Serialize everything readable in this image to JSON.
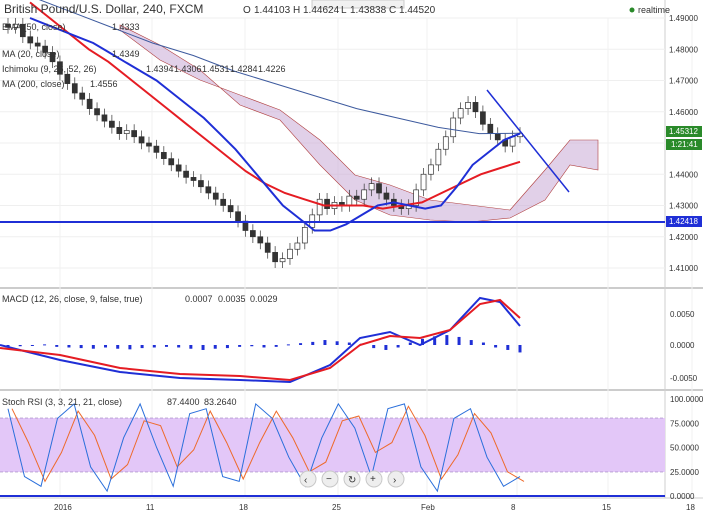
{
  "header": {
    "title": "British Pound/U.S. Dollar, 240, FXCM",
    "ohlc": {
      "o_label": "O",
      "o": "1.44103",
      "h_label": "H",
      "h": "1.44624",
      "l_label": "L",
      "l": "1.43838",
      "c_label": "C",
      "c": "1.44520"
    },
    "realtime": "realtime"
  },
  "indicators": {
    "ema": {
      "label": "EMA (50, close)",
      "value": "1.4333",
      "color": "#e51c23"
    },
    "ma20": {
      "label": "MA (20, close)",
      "value": "1.4349",
      "color": "#1f2fd6"
    },
    "ichimoku": {
      "label": "Ichimoku (9, 26, 52, 26)",
      "v1": "1.4394",
      "v2": "1.4306",
      "v3": "1.4531",
      "v4": "1.4284",
      "v5": "1.4226"
    },
    "ma200": {
      "label": "MA (200, close)",
      "value": "1.4556"
    }
  },
  "price_axis": {
    "ticks": [
      "1.49000",
      "1.48000",
      "1.47000",
      "1.46000",
      "1.45000",
      "1.44000",
      "1.43000",
      "1.42000",
      "1.41000"
    ],
    "current_price": "1.45312",
    "countdown": "1:21:41",
    "hline_price": "1.42418"
  },
  "macd": {
    "label": "MACD (12, 26, close, 9, false, true)",
    "v1": "0.0007",
    "v2": "0.0035",
    "v3": "0.0029",
    "ticks": [
      "0.0050",
      "0.0000",
      "-0.0050"
    ]
  },
  "stoch": {
    "label": "Stoch RSI (3, 3, 21, 21, close)",
    "v1": "87.4400",
    "v2": "83.2640",
    "ticks": [
      "100.0000",
      "75.0000",
      "50.0000",
      "25.0000",
      "0.0000"
    ]
  },
  "time_axis": [
    "2016",
    "11",
    "18",
    "25",
    "Feb",
    "8",
    "15",
    "18"
  ],
  "colors": {
    "ema": "#e51c23",
    "ma20": "#1f2fd6",
    "ma200": "#3d5a9e",
    "kumo": "#c9a9d6",
    "macd_line": "#1f2fd6",
    "signal_line": "#e51c23",
    "stoch_k": "#2a6fdb",
    "stoch_d": "#ee6a2a",
    "rsi_band": "#d9b3ff",
    "hline": "#1f2fd6"
  },
  "chart_data": {
    "type": "line",
    "title": "British Pound/U.S. Dollar, 240, FXCM",
    "ylim": [
      1.405,
      1.495
    ],
    "close": [
      1.487,
      1.488,
      1.484,
      1.482,
      1.481,
      1.479,
      1.476,
      1.472,
      1.469,
      1.466,
      1.464,
      1.461,
      1.459,
      1.457,
      1.455,
      1.453,
      1.454,
      1.452,
      1.45,
      1.449,
      1.447,
      1.445,
      1.443,
      1.441,
      1.439,
      1.438,
      1.436,
      1.434,
      1.432,
      1.43,
      1.428,
      1.425,
      1.422,
      1.42,
      1.418,
      1.415,
      1.412,
      1.413,
      1.416,
      1.418,
      1.423,
      1.427,
      1.432,
      1.429,
      1.431,
      1.43,
      1.433,
      1.432,
      1.435,
      1.437,
      1.434,
      1.432,
      1.43,
      1.429,
      1.43,
      1.435,
      1.44,
      1.443,
      1.448,
      1.452,
      1.458,
      1.461,
      1.463,
      1.46,
      1.456,
      1.453,
      1.451,
      1.449,
      1.452,
      1.4531
    ],
    "ma20": [
      1.49,
      1.488,
      1.486,
      1.484,
      1.482,
      1.479,
      1.476,
      1.473,
      1.47,
      1.466,
      1.462,
      1.458,
      1.453,
      1.448,
      1.442,
      1.436,
      1.43,
      1.426,
      1.422,
      1.422,
      1.424,
      1.427,
      1.43,
      1.431,
      1.43,
      1.429,
      1.43,
      1.436,
      1.443,
      1.447,
      1.451,
      1.453
    ],
    "ema50": [
      1.495,
      1.49,
      1.485,
      1.48,
      1.476,
      1.471,
      1.466,
      1.461,
      1.456,
      1.451,
      1.446,
      1.441,
      1.437,
      1.434,
      1.432,
      1.43,
      1.43,
      1.43,
      1.429,
      1.43,
      1.431,
      1.434,
      1.437,
      1.44,
      1.442,
      1.444
    ],
    "ma200": [
      1.497,
      1.492,
      1.487,
      1.482,
      1.478,
      1.473,
      1.469,
      1.465,
      1.461,
      1.458,
      1.455,
      1.453,
      1.4531
    ],
    "macd_hist": [
      -0.0003,
      -0.0002,
      -0.0001,
      0.0001,
      -0.0003,
      -0.0004,
      -0.0005,
      -0.0006,
      -0.0004,
      -0.0006,
      -0.0007,
      -0.0005,
      -0.0004,
      -0.0003,
      -0.0004,
      -0.0006,
      -0.0008,
      -0.0006,
      -0.0005,
      -0.0003,
      -0.0002,
      -0.0004,
      -0.0003,
      0.0001,
      0.0003,
      0.0005,
      0.0008,
      0.0006,
      0.0004,
      0.0002,
      -0.0005,
      -0.0008,
      -0.0004,
      0.0004,
      0.001,
      0.0014,
      0.0016,
      0.0013,
      0.0008,
      0.0004,
      -0.0004,
      -0.0008,
      -0.0012
    ],
    "stoch_k": [
      90,
      20,
      10,
      80,
      95,
      30,
      5,
      60,
      95,
      50,
      10,
      85,
      90,
      20,
      15,
      95,
      80,
      40,
      10,
      60,
      95,
      70,
      20,
      90,
      95,
      30,
      5,
      80,
      90,
      40,
      10,
      20
    ]
  }
}
